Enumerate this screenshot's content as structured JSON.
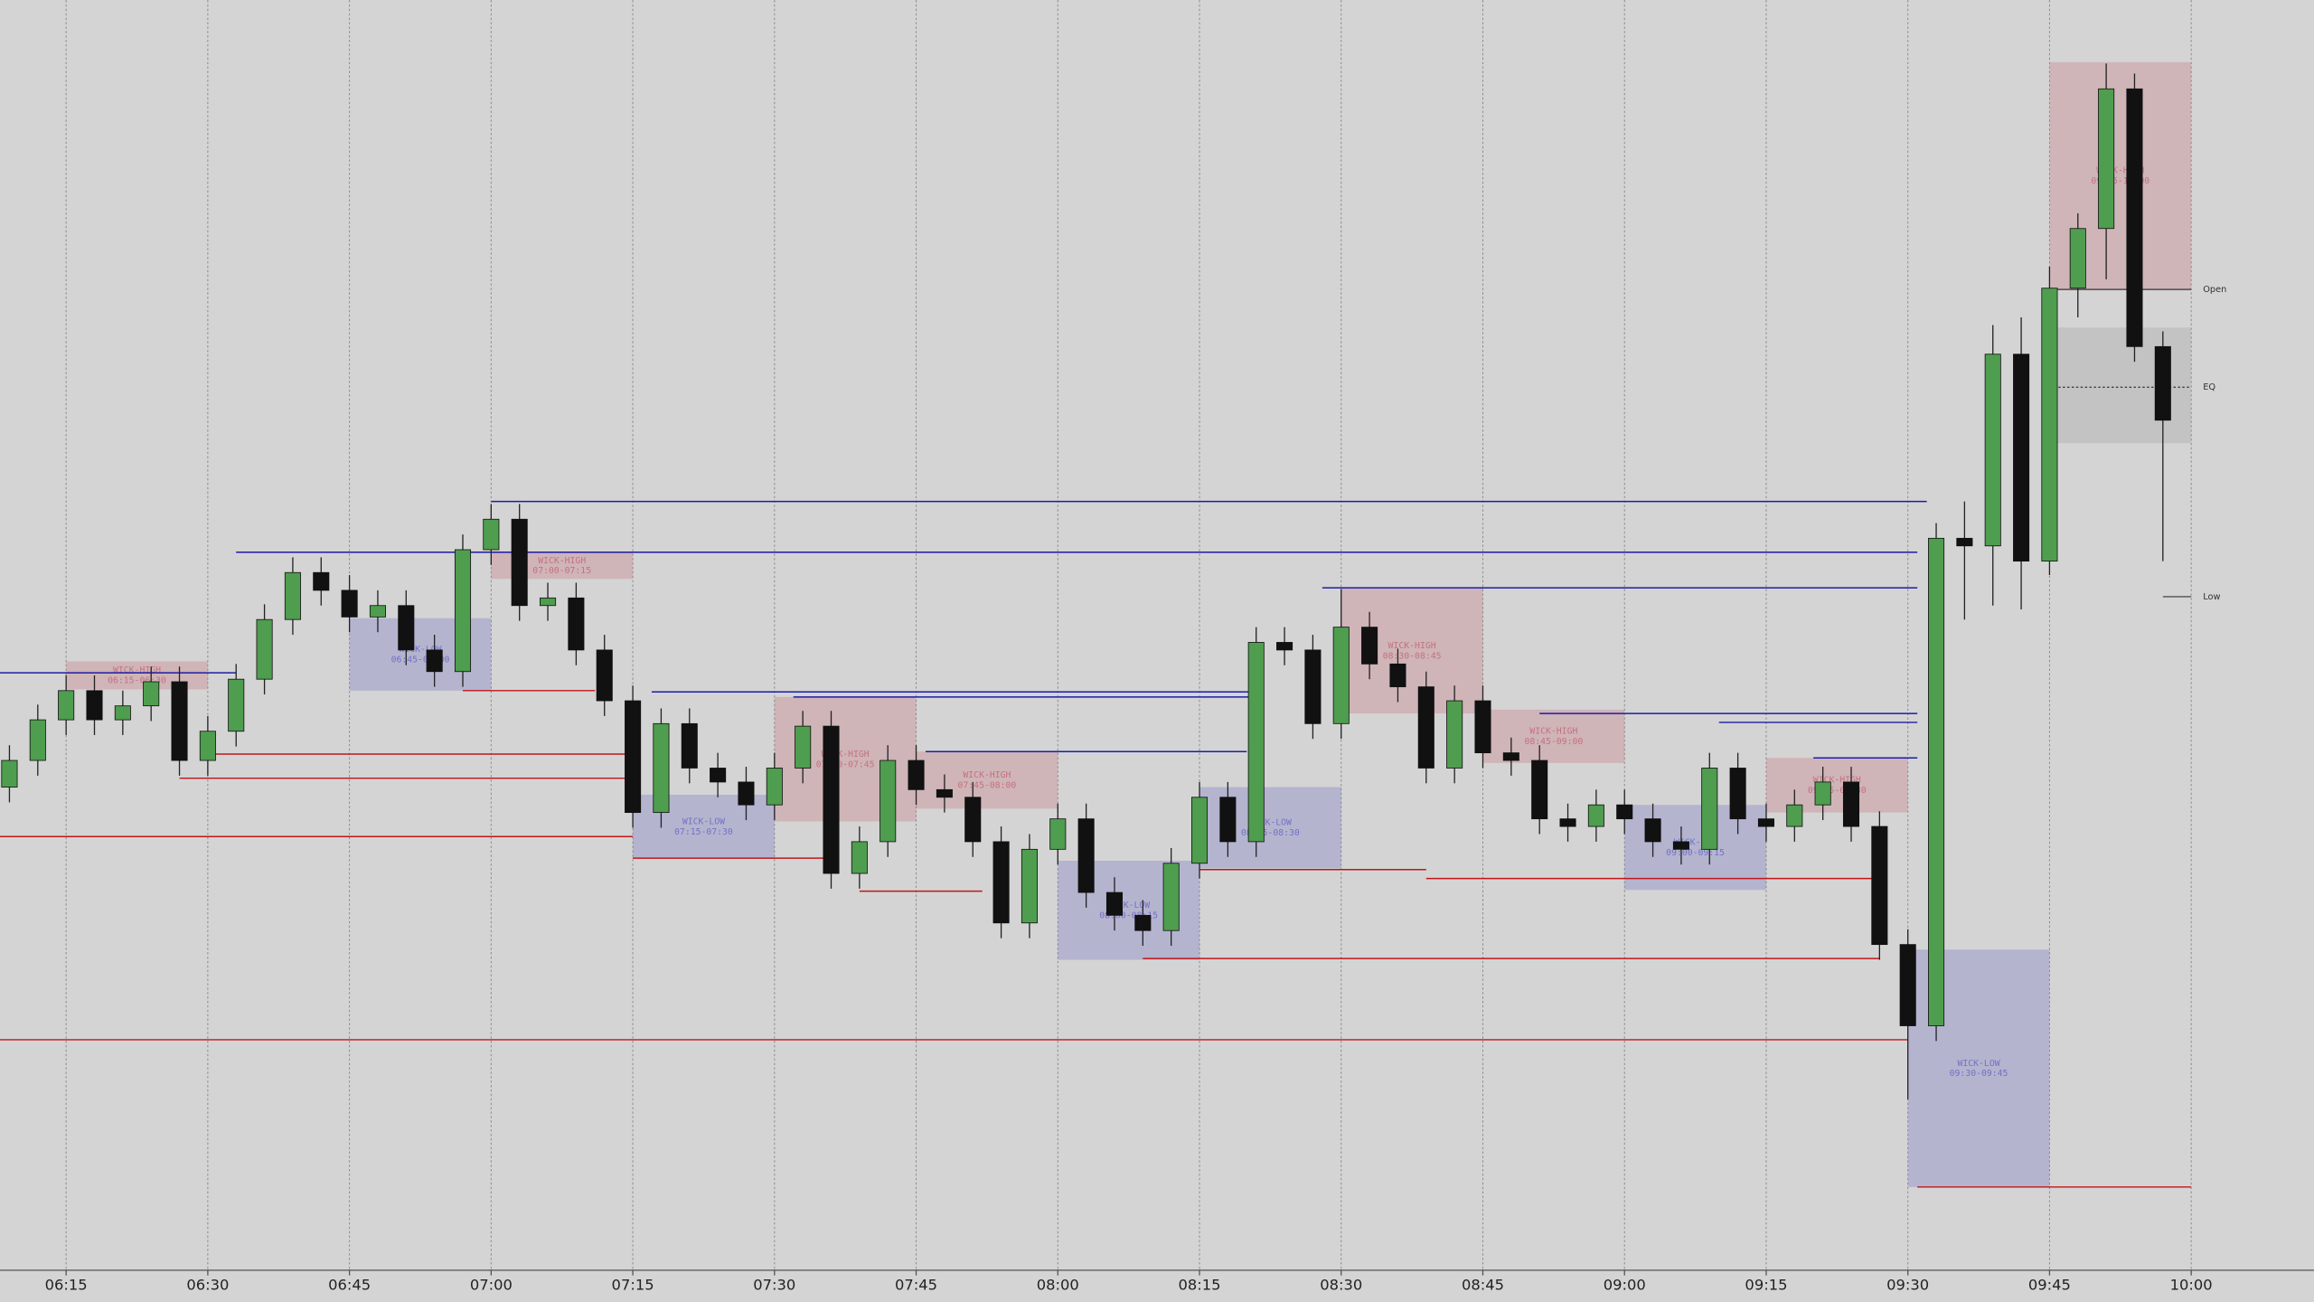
{
  "chart_data": {
    "type": "candlestick",
    "xlim": [
      "06:08",
      "10:13"
    ],
    "ylim": [
      0,
      100
    ],
    "xticks": [
      "06:15",
      "06:30",
      "06:45",
      "07:00",
      "07:15",
      "07:30",
      "07:45",
      "08:00",
      "08:15",
      "08:30",
      "08:45",
      "09:00",
      "09:15",
      "09:30",
      "09:45",
      "10:00"
    ],
    "grid": true,
    "up_color": "#4f9d4f",
    "down_color": "#111111",
    "x": [
      "06:09",
      "06:12",
      "06:15",
      "06:18",
      "06:21",
      "06:24",
      "06:27",
      "06:30",
      "06:33",
      "06:36",
      "06:39",
      "06:42",
      "06:45",
      "06:48",
      "06:51",
      "06:54",
      "06:57",
      "07:00",
      "07:03",
      "07:06",
      "07:09",
      "07:12",
      "07:15",
      "07:18",
      "07:21",
      "07:24",
      "07:27",
      "07:30",
      "07:33",
      "07:36",
      "07:39",
      "07:42",
      "07:45",
      "07:48",
      "07:51",
      "07:54",
      "07:57",
      "08:00",
      "08:03",
      "08:06",
      "08:09",
      "08:12",
      "08:15",
      "08:18",
      "08:21",
      "08:24",
      "08:27",
      "08:30",
      "08:33",
      "08:36",
      "08:39",
      "08:42",
      "08:45",
      "08:48",
      "08:51",
      "08:54",
      "08:57",
      "09:00",
      "09:03",
      "09:06",
      "09:09",
      "09:12",
      "09:15",
      "09:18",
      "09:21",
      "09:24",
      "09:27",
      "09:30",
      "09:33",
      "09:36",
      "09:39",
      "09:42",
      "09:45",
      "09:48",
      "09:51",
      "09:54",
      "09:57"
    ],
    "open": [
      38.0,
      40.1,
      43.3,
      45.6,
      43.3,
      44.4,
      46.3,
      40.1,
      42.4,
      46.5,
      51.2,
      54.9,
      53.5,
      51.4,
      52.3,
      48.8,
      47.1,
      56.7,
      59.1,
      52.3,
      52.9,
      48.8,
      44.8,
      36.0,
      43.0,
      39.5,
      38.4,
      36.6,
      39.5,
      42.8,
      31.2,
      33.7,
      40.1,
      37.8,
      37.2,
      33.7,
      27.3,
      33.1,
      35.5,
      29.7,
      27.9,
      26.7,
      32.0,
      37.2,
      33.7,
      49.4,
      48.8,
      43.0,
      50.6,
      47.7,
      45.9,
      39.5,
      44.8,
      40.7,
      40.1,
      35.5,
      34.9,
      36.6,
      35.5,
      33.7,
      33.1,
      39.5,
      35.5,
      34.9,
      36.6,
      38.4,
      34.9,
      25.6,
      19.2,
      57.6,
      57.0,
      72.1,
      55.8,
      77.3,
      82.0,
      93.0,
      72.7
    ],
    "high": [
      41.3,
      44.5,
      46.8,
      46.8,
      45.6,
      47.5,
      47.5,
      43.6,
      47.7,
      52.4,
      56.1,
      56.1,
      54.7,
      53.5,
      53.5,
      50.0,
      57.9,
      60.3,
      60.3,
      54.1,
      54.1,
      50.0,
      46.0,
      44.2,
      44.2,
      40.7,
      39.6,
      40.7,
      44.0,
      44.0,
      34.9,
      41.3,
      41.3,
      39.0,
      38.4,
      34.9,
      34.3,
      36.7,
      36.7,
      30.9,
      29.1,
      33.2,
      38.4,
      38.4,
      50.6,
      50.6,
      50.0,
      53.6,
      51.8,
      48.9,
      47.1,
      46.0,
      46.0,
      41.9,
      41.3,
      36.7,
      37.8,
      37.8,
      36.7,
      34.9,
      40.7,
      40.7,
      36.7,
      37.8,
      39.6,
      39.6,
      36.1,
      26.8,
      58.8,
      60.5,
      74.4,
      75.0,
      79.0,
      83.2,
      95.0,
      94.2,
      73.9
    ],
    "low": [
      36.8,
      38.9,
      42.1,
      42.1,
      42.1,
      43.2,
      38.9,
      38.9,
      41.2,
      45.3,
      50.0,
      52.3,
      50.2,
      50.2,
      47.6,
      45.9,
      45.9,
      55.5,
      51.1,
      51.1,
      47.6,
      43.6,
      34.8,
      34.8,
      38.3,
      37.2,
      35.4,
      35.4,
      38.3,
      30.0,
      30.0,
      32.5,
      36.6,
      36.0,
      32.5,
      26.1,
      26.1,
      31.9,
      28.5,
      26.7,
      25.5,
      25.5,
      30.8,
      32.5,
      32.5,
      47.6,
      41.8,
      41.8,
      46.5,
      44.7,
      38.3,
      38.3,
      39.5,
      38.9,
      34.3,
      33.7,
      33.7,
      34.3,
      32.5,
      31.9,
      31.9,
      34.3,
      33.7,
      33.7,
      35.4,
      33.7,
      24.4,
      13.4,
      18.0,
      51.2,
      52.3,
      52.0,
      54.7,
      75.0,
      78.0,
      71.5,
      55.8
    ],
    "close": [
      40.1,
      43.3,
      45.6,
      43.3,
      44.4,
      46.3,
      40.1,
      42.4,
      46.5,
      51.2,
      54.9,
      53.5,
      51.4,
      52.3,
      48.8,
      47.1,
      56.7,
      59.1,
      52.3,
      52.9,
      48.8,
      44.8,
      36.0,
      43.0,
      39.5,
      38.4,
      36.6,
      39.5,
      42.8,
      31.2,
      33.7,
      40.1,
      37.8,
      37.2,
      33.7,
      27.3,
      33.1,
      35.5,
      29.7,
      27.9,
      26.7,
      32.0,
      37.2,
      33.7,
      49.4,
      48.8,
      43.0,
      50.6,
      47.7,
      45.9,
      39.5,
      44.8,
      40.7,
      40.1,
      35.5,
      34.9,
      36.6,
      35.5,
      33.7,
      33.1,
      39.5,
      35.5,
      34.9,
      36.6,
      38.4,
      34.9,
      25.6,
      19.2,
      57.6,
      57.0,
      72.1,
      55.8,
      77.3,
      82.0,
      93.0,
      72.7,
      66.9
    ],
    "zones": [
      {
        "kind": "WICK-HIGH",
        "range": "06:15-06:30",
        "from": "06:15",
        "to": "06:30",
        "top": 47.9,
        "bottom": 45.7,
        "color": "#c46a78"
      },
      {
        "kind": "WICK-LOW",
        "range": "06:45-07:00",
        "from": "06:45",
        "to": "07:00",
        "top": 51.3,
        "bottom": 45.6,
        "color": "#6a6ac4"
      },
      {
        "kind": "WICK-HIGH",
        "range": "07:00-07:15",
        "from": "07:00",
        "to": "07:15",
        "top": 56.5,
        "bottom": 54.4,
        "color": "#c46a78"
      },
      {
        "kind": "WICK-LOW",
        "range": "07:15-07:30",
        "from": "07:15",
        "to": "07:30",
        "top": 37.4,
        "bottom": 32.4,
        "color": "#6a6ac4"
      },
      {
        "kind": "WICK-HIGH",
        "range": "07:30-07:45",
        "from": "07:30",
        "to": "07:45",
        "top": 45.1,
        "bottom": 35.3,
        "color": "#c46a78"
      },
      {
        "kind": "WICK-HIGH",
        "range": "07:45-08:00",
        "from": "07:45",
        "to": "08:00",
        "top": 40.8,
        "bottom": 36.3,
        "color": "#c46a78"
      },
      {
        "kind": "WICK-LOW",
        "range": "08:00-08:15",
        "from": "08:00",
        "to": "08:15",
        "top": 32.2,
        "bottom": 24.4,
        "color": "#6a6ac4"
      },
      {
        "kind": "WICK-LOW",
        "range": "08:15-08:30",
        "from": "08:15",
        "to": "08:30",
        "top": 38.0,
        "bottom": 31.6,
        "color": "#6a6ac4"
      },
      {
        "kind": "WICK-HIGH",
        "range": "08:30-08:45",
        "from": "08:30",
        "to": "08:45",
        "top": 53.7,
        "bottom": 43.8,
        "color": "#c46a78"
      },
      {
        "kind": "WICK-HIGH",
        "range": "08:45-09:00",
        "from": "08:45",
        "to": "09:00",
        "top": 44.1,
        "bottom": 39.9,
        "color": "#c46a78"
      },
      {
        "kind": "WICK-LOW",
        "range": "09:00-09:15",
        "from": "09:00",
        "to": "09:15",
        "top": 36.6,
        "bottom": 29.9,
        "color": "#6a6ac4"
      },
      {
        "kind": "WICK-HIGH",
        "range": "09:15-09:30",
        "from": "09:15",
        "to": "09:30",
        "top": 40.3,
        "bottom": 36.0,
        "color": "#c46a78"
      },
      {
        "kind": "WICK-LOW",
        "range": "09:30-09:45",
        "from": "09:30",
        "to": "09:45",
        "top": 25.2,
        "bottom": 6.5,
        "color": "#6a6ac4"
      },
      {
        "kind": "WICK-HIGH",
        "range": "09:45-10:00",
        "from": "09:45",
        "to": "10:00",
        "top": 95.1,
        "bottom": 77.2,
        "color": "#c46a78"
      }
    ],
    "range_box": {
      "from": "09:45",
      "to": "10:00",
      "top": 74.2,
      "bottom": 65.1,
      "color": "#9a9a9a"
    },
    "levels": [
      {
        "value": 60.5,
        "from": "07:00",
        "to": "09:32",
        "color": "#1c1ca8"
      },
      {
        "value": 56.5,
        "from": "06:33",
        "to": "09:31",
        "color": "#1c1ca8"
      },
      {
        "value": 53.7,
        "from": "08:28",
        "to": "09:31",
        "color": "#1c1ca8"
      },
      {
        "value": 45.5,
        "from": "07:17",
        "to": "08:21",
        "color": "#1c1ca8"
      },
      {
        "value": 45.1,
        "from": "07:32",
        "to": "08:21",
        "color": "#1c1ca8"
      },
      {
        "value": 43.8,
        "from": "08:51",
        "to": "09:31",
        "color": "#1c1ca8"
      },
      {
        "value": 43.1,
        "from": "09:10",
        "to": "09:31",
        "color": "#1c1ca8"
      },
      {
        "value": 40.8,
        "from": "07:46",
        "to": "08:20",
        "color": "#1c1ca8"
      },
      {
        "value": 40.3,
        "from": "09:20",
        "to": "09:31",
        "color": "#1c1ca8"
      },
      {
        "value": 47.0,
        "from": "06:08",
        "to": "06:33",
        "color": "#1c1ca8"
      },
      {
        "value": 18.1,
        "from": "06:08",
        "to": "09:30",
        "color": "#c0161b"
      },
      {
        "value": 6.5,
        "from": "09:31",
        "to": "10:00",
        "color": "#c0161b"
      },
      {
        "value": 34.1,
        "from": "06:08",
        "to": "07:15",
        "color": "#c0161b"
      },
      {
        "value": 32.4,
        "from": "07:15",
        "to": "07:36",
        "color": "#c0161b"
      },
      {
        "value": 24.5,
        "from": "08:09",
        "to": "09:27",
        "color": "#c0161b"
      },
      {
        "value": 38.7,
        "from": "06:27",
        "to": "07:15",
        "color": "#c0161b"
      },
      {
        "value": 40.6,
        "from": "06:30",
        "to": "07:15",
        "color": "#c0161b"
      },
      {
        "value": 45.6,
        "from": "06:57",
        "to": "07:11",
        "color": "#c0161b"
      },
      {
        "value": 29.8,
        "from": "07:39",
        "to": "07:52",
        "color": "#c0161b"
      },
      {
        "value": 31.5,
        "from": "08:15",
        "to": "08:39",
        "color": "#c0161b"
      },
      {
        "value": 30.8,
        "from": "08:39",
        "to": "09:27",
        "color": "#c0161b"
      }
    ],
    "annotations": [
      {
        "label": "Open",
        "value": 77.2,
        "from": "09:45",
        "to": "10:00"
      },
      {
        "label": "EQ",
        "value": 69.5,
        "from": "09:45",
        "to": "10:00"
      },
      {
        "label": "Low",
        "value": 53.0,
        "from": "09:57",
        "to": "10:00"
      }
    ]
  }
}
